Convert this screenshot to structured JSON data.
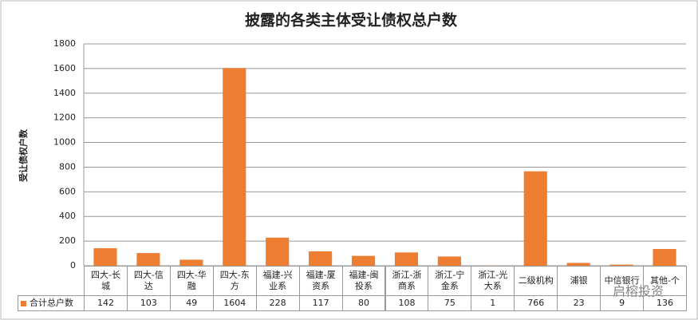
{
  "chart_data": {
    "type": "bar",
    "title": "披露的各类主体受让债权总户数",
    "y_label": "受让债权户数",
    "categories": [
      "四大-长城",
      "四大-信达",
      "四大-华融",
      "四大-东方",
      "福建-兴业系",
      "福建-厦资系",
      "福建-闽投系",
      "浙江-浙商系",
      "浙江-宁金系",
      "浙江-光大系",
      "二级机构",
      "浦银",
      "中信银行",
      "其他-个"
    ],
    "series": [
      {
        "name": "合计总户数",
        "color": "#ed7d31",
        "values": [
          142,
          103,
          49,
          1604,
          228,
          117,
          80,
          108,
          75,
          1,
          766,
          23,
          9,
          136
        ]
      }
    ],
    "ylim": [
      0,
      1800
    ],
    "yticks": [
      0,
      200,
      400,
      600,
      800,
      1000,
      1200,
      1400,
      1600,
      1800
    ],
    "grid": true
  },
  "watermark": "启榕投资"
}
